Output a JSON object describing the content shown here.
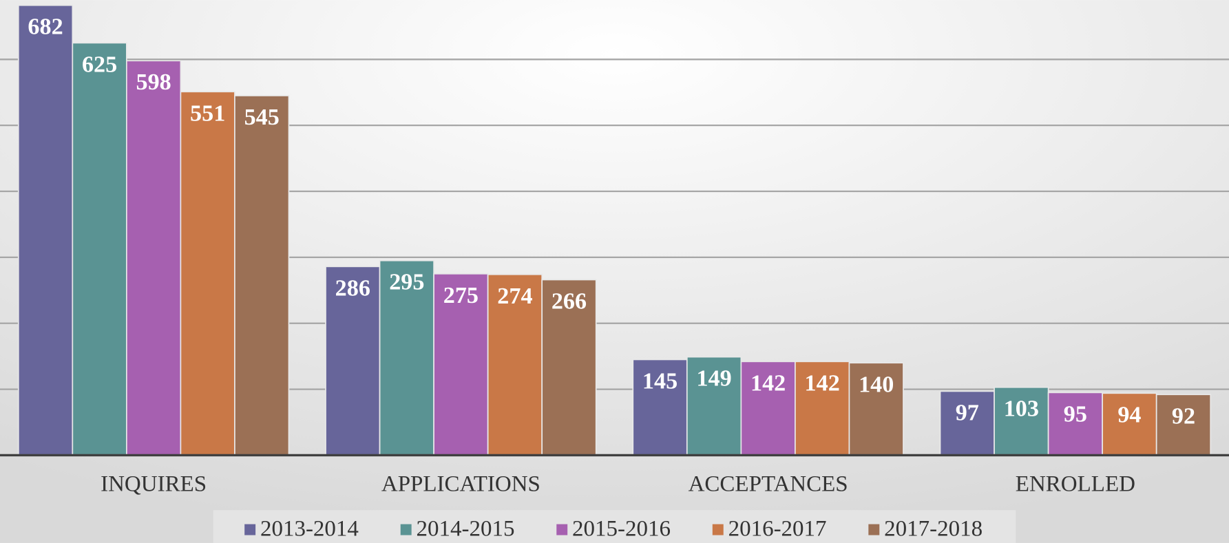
{
  "chart_data": {
    "type": "bar",
    "categories": [
      "INQUIRES",
      "APPLICATIONS",
      "ACCEPTANCES",
      "ENROLLED"
    ],
    "series": [
      {
        "name": "2013-2014",
        "color": "#67659a",
        "values": [
          682,
          286,
          145,
          97
        ]
      },
      {
        "name": "2014-2015",
        "color": "#5a9393",
        "values": [
          625,
          295,
          149,
          103
        ]
      },
      {
        "name": "2015-2016",
        "color": "#a660b0",
        "values": [
          598,
          275,
          142,
          95
        ]
      },
      {
        "name": "2016-2017",
        "color": "#c97847",
        "values": [
          551,
          274,
          142,
          94
        ]
      },
      {
        "name": "2017-2018",
        "color": "#9b7055",
        "values": [
          545,
          266,
          140,
          92
        ]
      }
    ],
    "ylim": [
      0,
      690
    ],
    "yticks": [
      0,
      100,
      200,
      300,
      400,
      500,
      600
    ],
    "grid": true,
    "legend": "bottom"
  }
}
